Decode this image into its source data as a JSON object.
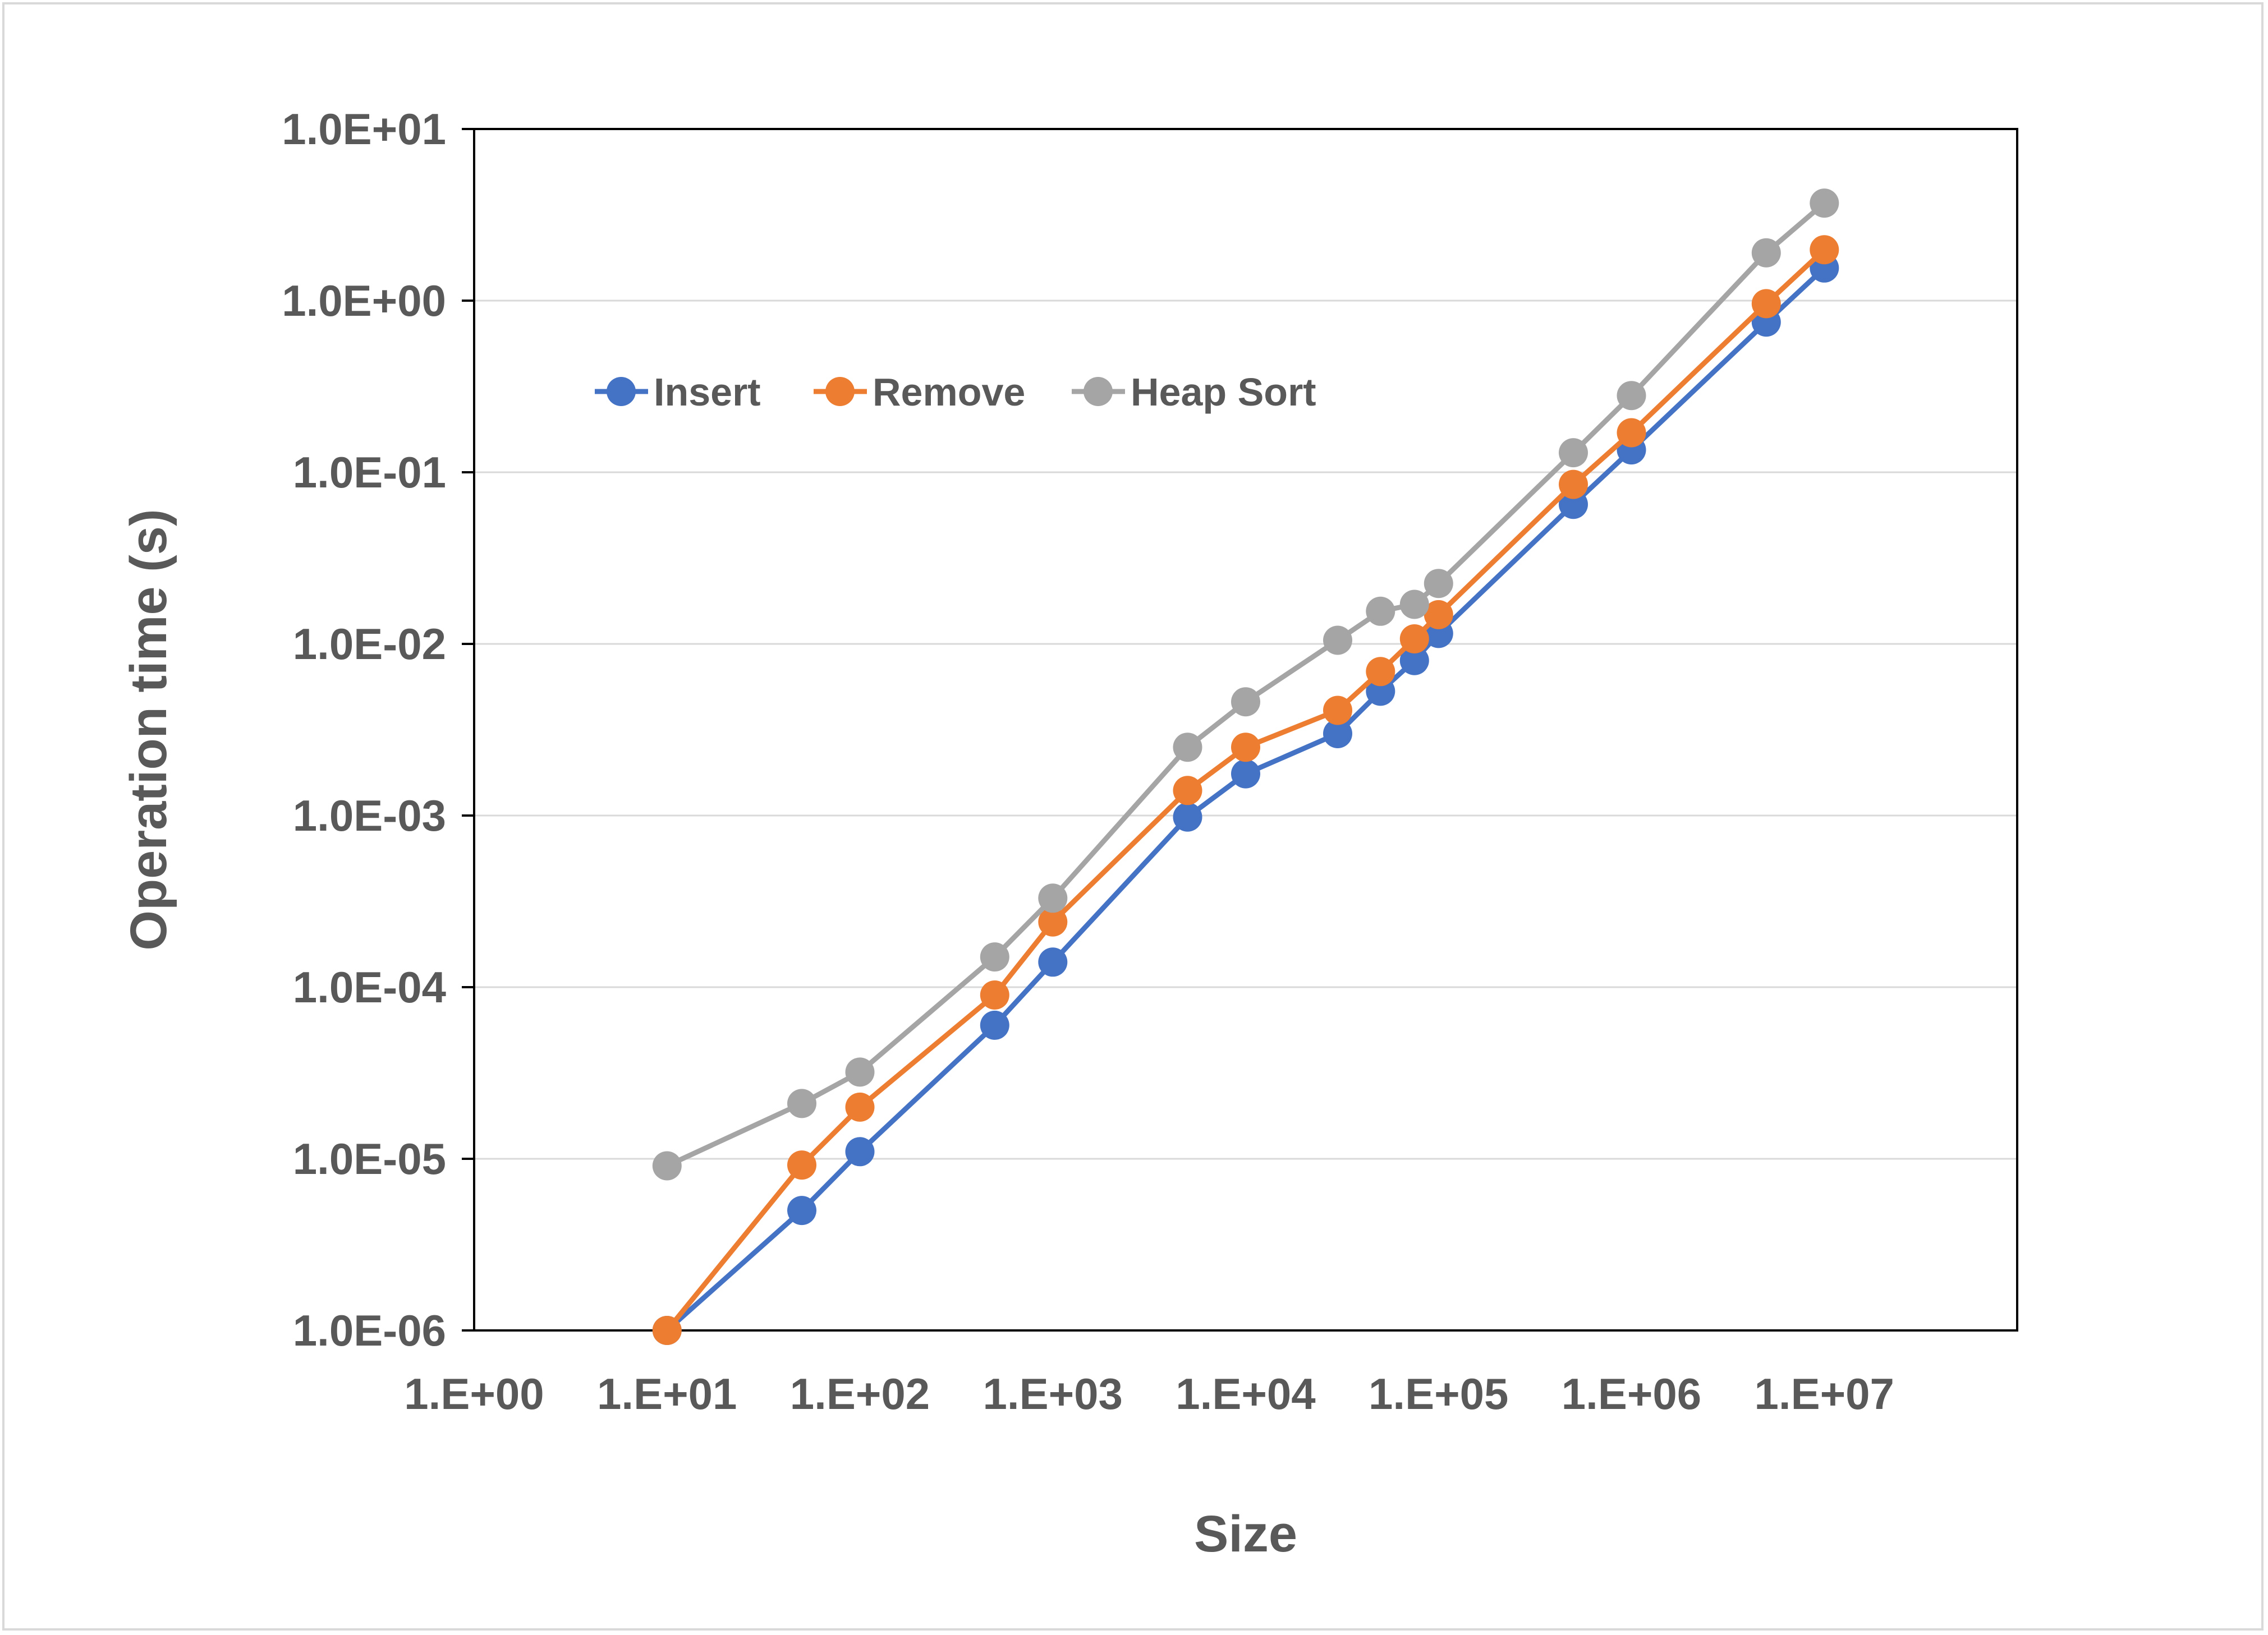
{
  "chart_data": {
    "type": "line",
    "title": "",
    "xlabel": "Size",
    "ylabel": "Operation time (s)",
    "x_scale": "log",
    "y_scale": "log",
    "xlim": [
      1,
      100000000
    ],
    "ylim": [
      1e-06,
      10
    ],
    "x_ticks": [
      "1.E+00",
      "1.E+01",
      "1.E+02",
      "1.E+03",
      "1.E+04",
      "1.E+05",
      "1.E+06",
      "1.E+07"
    ],
    "y_ticks": [
      "1.0E-06",
      "1.0E-05",
      "1.0E-04",
      "1.0E-03",
      "1.0E-02",
      "1.0E-01",
      "1.0E+00",
      "1.0E+01"
    ],
    "grid": "horizontal",
    "legend": "top-left inside plot",
    "series": [
      {
        "name": "Insert",
        "color": "#4472c4",
        "points": [
          [
            10,
            1e-06
          ],
          [
            50,
            5e-06
          ],
          [
            100,
            1.1e-05
          ],
          [
            500,
            6e-05
          ],
          [
            1000,
            0.00014
          ],
          [
            5000,
            0.00098
          ],
          [
            10000,
            0.00175
          ],
          [
            30000,
            0.003
          ],
          [
            50000,
            0.0053
          ],
          [
            75000,
            0.008
          ],
          [
            100000,
            0.0115
          ],
          [
            500000,
            0.065
          ],
          [
            1000000,
            0.135
          ],
          [
            5000000,
            0.75
          ],
          [
            10000000,
            1.55
          ]
        ]
      },
      {
        "name": "Remove",
        "color": "#ed7d31",
        "points": [
          [
            10,
            1e-06
          ],
          [
            50,
            9.2e-06
          ],
          [
            100,
            2e-05
          ],
          [
            500,
            9e-05
          ],
          [
            1000,
            0.00024
          ],
          [
            5000,
            0.0014
          ],
          [
            10000,
            0.0025
          ],
          [
            30000,
            0.0041
          ],
          [
            50000,
            0.0069
          ],
          [
            75000,
            0.0107
          ],
          [
            100000,
            0.0148
          ],
          [
            500000,
            0.085
          ],
          [
            1000000,
            0.17
          ],
          [
            5000000,
            0.96
          ],
          [
            10000000,
            1.98
          ]
        ]
      },
      {
        "name": "Heap Sort",
        "color": "#a5a5a5",
        "points": [
          [
            10,
            9.1e-06
          ],
          [
            50,
            2.1e-05
          ],
          [
            100,
            3.2e-05
          ],
          [
            500,
            0.00015
          ],
          [
            1000,
            0.00033
          ],
          [
            5000,
            0.0025
          ],
          [
            10000,
            0.0046
          ],
          [
            30000,
            0.0105
          ],
          [
            50000,
            0.0155
          ],
          [
            75000,
            0.017
          ],
          [
            100000,
            0.0225
          ],
          [
            500000,
            0.13
          ],
          [
            1000000,
            0.28
          ],
          [
            5000000,
            1.9
          ],
          [
            10000000,
            3.7
          ]
        ]
      }
    ]
  },
  "colors": {
    "plot_border": "#000000",
    "gridline": "#d9d9d9",
    "text": "#595959"
  }
}
